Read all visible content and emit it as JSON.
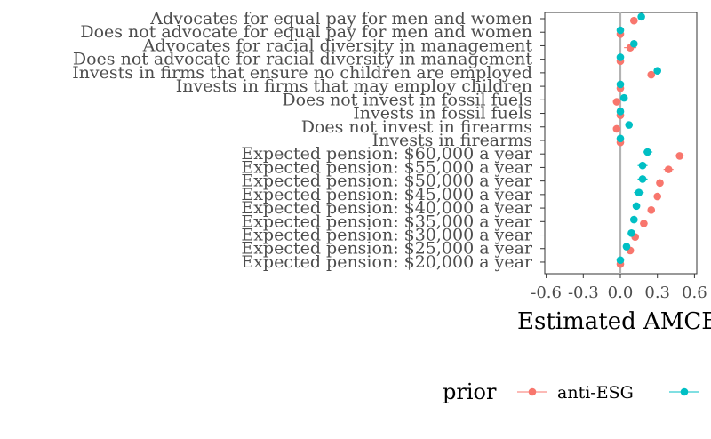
{
  "chart_data": {
    "type": "scatter",
    "xlabel": "Estimated AMCE",
    "xlim": [
      -0.62,
      0.62
    ],
    "xticks": [
      -0.6,
      -0.3,
      0.0,
      0.3,
      0.6
    ],
    "xtick_labels": [
      "-0.6",
      "-0.3",
      "0.0",
      "0.3",
      "0.6"
    ],
    "reference_line": 0,
    "grid": false,
    "legend_title": "prior",
    "legend_position": "bottom",
    "categories": [
      "Advocates for equal pay for men and women",
      "Does not advocate for equal pay for men and women",
      "Advocates for racial diversity in management",
      "Does not advocate for racial diversity in management",
      "Invests in firms that ensure no children are employed",
      "Invests in firms that may employ children",
      "Does not invest in fossil fuels",
      "Invests in fossil fuels",
      "Does not invest in firearms",
      "Invests in firearms",
      "Expected pension: $60,000 a year",
      "Expected pension: $55,000 a year",
      "Expected pension: $50,000 a year",
      "Expected pension: $45,000 a year",
      "Expected pension: $40,000 a year",
      "Expected pension: $35,000 a year",
      "Expected pension: $30,000 a year",
      "Expected pension: $25,000 a year",
      "Expected pension: $20,000 a year"
    ],
    "series": [
      {
        "name": "anti-ESG",
        "color": "#F8766D",
        "values": [
          0.11,
          0.0,
          0.08,
          0.0,
          0.25,
          0.0,
          -0.03,
          0.0,
          -0.03,
          0.0,
          0.48,
          0.39,
          0.32,
          0.3,
          0.25,
          0.19,
          0.12,
          0.08,
          0.0
        ],
        "ci_half": [
          0.03,
          0,
          0.05,
          0,
          0.03,
          0,
          0.02,
          0,
          0.02,
          0,
          0.04,
          0.04,
          0.03,
          0.03,
          0.03,
          0.03,
          0.03,
          0.03,
          0
        ]
      },
      {
        "name": "",
        "color": "#00BFC4",
        "values": [
          0.17,
          0.0,
          0.11,
          0.0,
          0.3,
          0.0,
          0.03,
          0.0,
          0.07,
          0.0,
          0.22,
          0.18,
          0.18,
          0.15,
          0.13,
          0.11,
          0.09,
          0.05,
          0.0
        ],
        "ci_half": [
          0.02,
          0,
          0.02,
          0,
          0.03,
          0,
          0.02,
          0,
          0.02,
          0,
          0.04,
          0.04,
          0.04,
          0.04,
          0.03,
          0.03,
          0.03,
          0.02,
          0
        ]
      }
    ]
  }
}
